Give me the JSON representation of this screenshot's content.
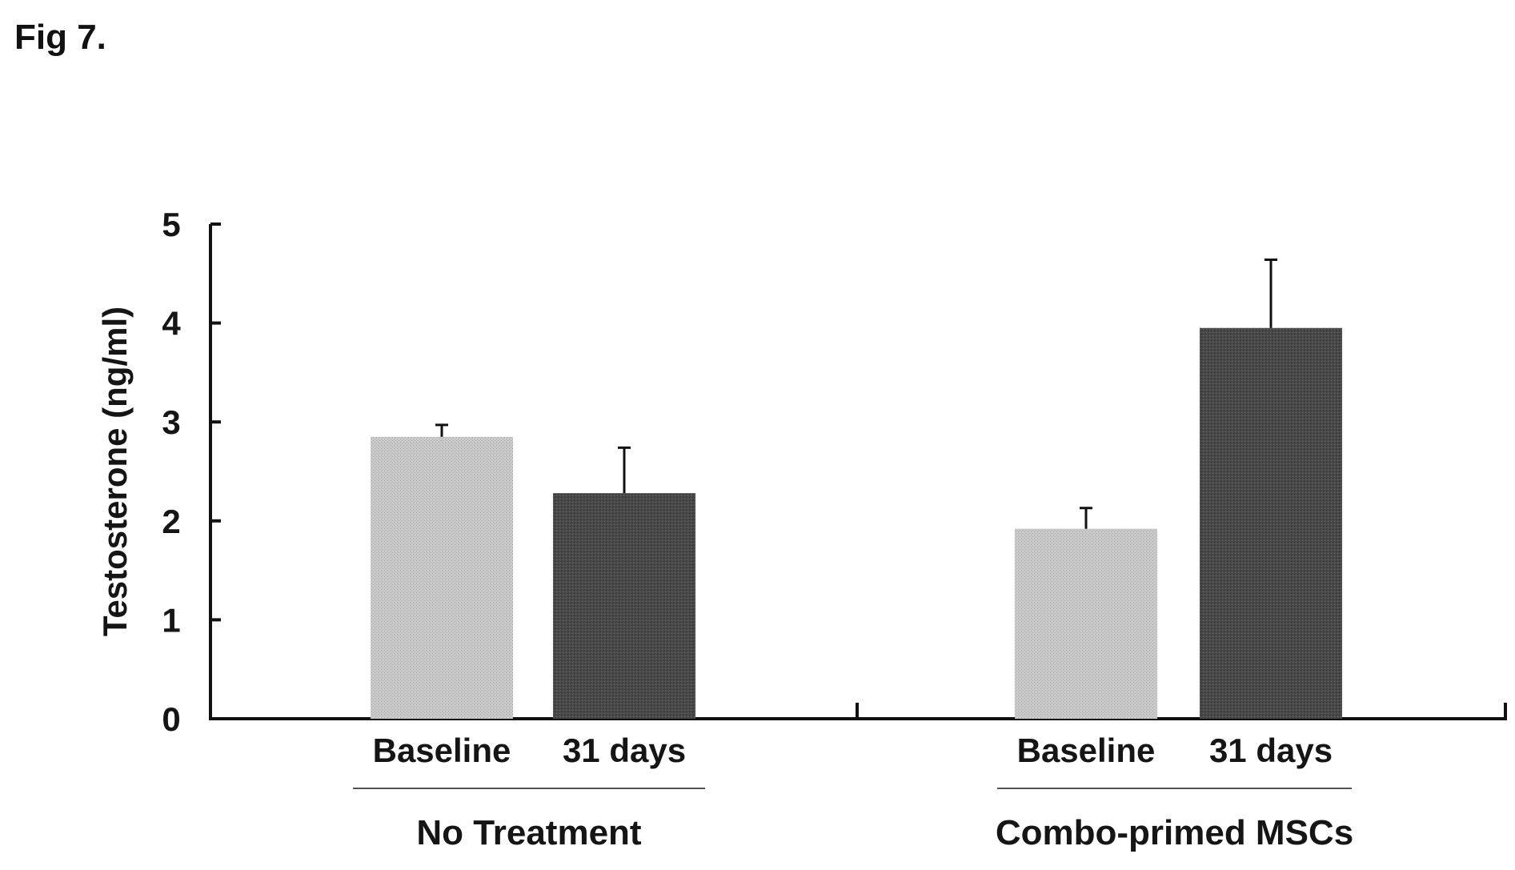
{
  "figure_label": "Fig 7.",
  "chart_data": {
    "type": "bar",
    "title": "",
    "xlabel": "",
    "ylabel": "Testosterone (ng/ml)",
    "ylim": [
      0,
      5
    ],
    "yticks": [
      "0",
      "1",
      "2",
      "3",
      "4",
      "5"
    ],
    "groups": [
      {
        "name": "No Treatment",
        "bars": [
          {
            "label": "Baseline",
            "value": 2.85,
            "error": 0.12
          },
          {
            "label": "31 days",
            "value": 2.28,
            "error": 0.46
          }
        ]
      },
      {
        "name": "Combo-primed MSCs",
        "bars": [
          {
            "label": "Baseline",
            "value": 1.92,
            "error": 0.21
          },
          {
            "label": "31 days",
            "value": 3.95,
            "error": 0.69
          }
        ]
      }
    ],
    "colors": {
      "Baseline": "#c8c8c8",
      "31 days": "#4a4a4a",
      "axis": "#111111"
    },
    "grid": false,
    "legend": "none"
  }
}
